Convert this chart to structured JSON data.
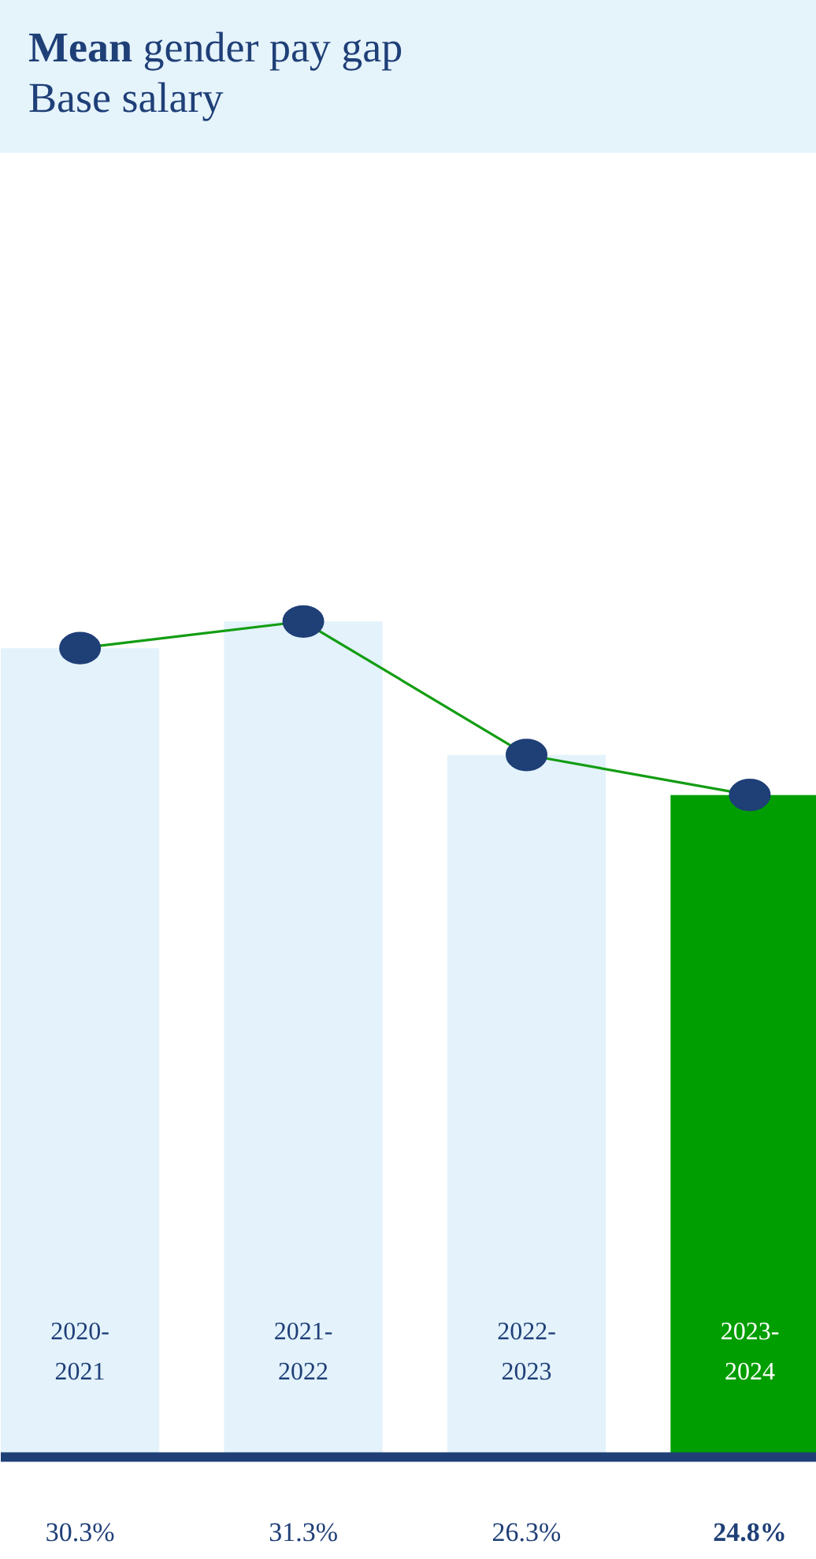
{
  "chart_data": {
    "type": "bar",
    "title": "Mean gender pay gap",
    "subtitle": "Base salary",
    "categories": [
      "2020-2021",
      "2021-2022",
      "2022-2023",
      "2023-2024"
    ],
    "series": [
      {
        "values": [
          30.3,
          31.3,
          26.3,
          24.8
        ],
        "colors": [
          "#e3f2fb",
          "#e3f2fb",
          "#e3f2fb",
          "#009e00"
        ],
        "value_labels": [
          "30.3%",
          "31.3%",
          "26.3%",
          "24.8%"
        ]
      },
      {
        "type": "line",
        "values": [
          30.3,
          31.3,
          26.3,
          24.8
        ],
        "color": "#129d12",
        "marker": "circle"
      }
    ]
  }
}
